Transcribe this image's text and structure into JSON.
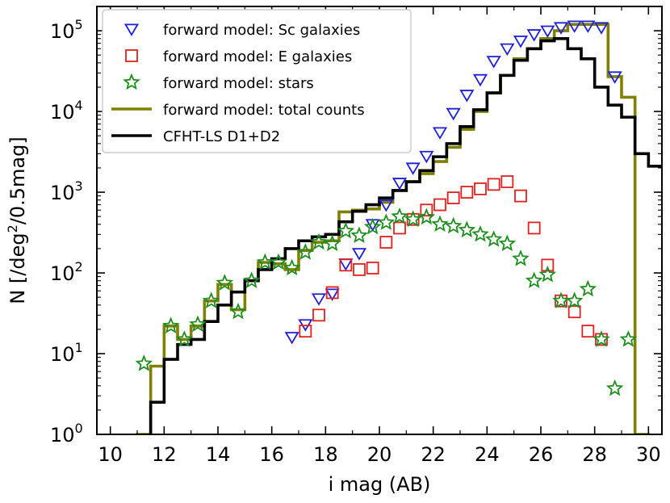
{
  "chart_data": {
    "type": "line",
    "xlabel": "i mag (AB)",
    "ylabel": "N [/deg^2/0.5mag]",
    "ylabel_parts": {
      "prefix": "N [/deg",
      "exp": "2",
      "suffix": "/0.5mag]"
    },
    "xlim": [
      9.5,
      30.5
    ],
    "ylim": [
      1,
      200000
    ],
    "yscale": "log",
    "x_ticks": [
      10,
      12,
      14,
      16,
      18,
      20,
      22,
      24,
      26,
      28,
      30
    ],
    "x_tick_labels": [
      "10",
      "12",
      "14",
      "16",
      "18",
      "20",
      "22",
      "24",
      "26",
      "28",
      "30"
    ],
    "y_ticks": [
      1,
      10,
      100,
      1000,
      10000,
      100000
    ],
    "y_tick_labels": [
      {
        "base": "10",
        "exp": "0"
      },
      {
        "base": "10",
        "exp": "1"
      },
      {
        "base": "10",
        "exp": "2"
      },
      {
        "base": "10",
        "exp": "3"
      },
      {
        "base": "10",
        "exp": "4"
      },
      {
        "base": "10",
        "exp": "5"
      }
    ],
    "legend_position": "top-left",
    "legend": [
      {
        "label": "forward model: Sc galaxies",
        "kind": "triangle-down",
        "color": "#1f1fd6"
      },
      {
        "label": "forward model: E galaxies",
        "kind": "square",
        "color": "#e02020"
      },
      {
        "label": "forward model: stars",
        "kind": "star",
        "color": "#1e8c1e"
      },
      {
        "label": "forward model: total counts",
        "kind": "line",
        "color": "#808000"
      },
      {
        "label": "CFHT-LS D1+D2",
        "kind": "line",
        "color": "#000000"
      }
    ],
    "series": [
      {
        "name": "forward model: total counts",
        "kind": "step",
        "color": "#808000",
        "x": [
          11.0,
          11.5,
          12.0,
          12.5,
          13.0,
          13.5,
          14.0,
          14.5,
          15.0,
          15.5,
          16.0,
          16.5,
          17.0,
          17.5,
          18.0,
          18.5,
          19.0,
          19.5,
          20.0,
          20.5,
          21.0,
          21.5,
          22.0,
          22.5,
          23.0,
          23.5,
          24.0,
          24.5,
          25.0,
          25.5,
          26.0,
          26.5,
          27.0,
          27.5,
          28.0,
          28.5,
          29.0,
          29.5
        ],
        "values": [
          1,
          7,
          22,
          15,
          22,
          45,
          72,
          35,
          80,
          135,
          130,
          110,
          190,
          240,
          250,
          570,
          600,
          620,
          750,
          1050,
          1350,
          1700,
          2400,
          3600,
          6000,
          10000,
          17000,
          28000,
          45000,
          60000,
          80000,
          100000,
          120000,
          120000,
          120000,
          27000,
          15000,
          1
        ]
      },
      {
        "name": "CFHT-LS D1+D2",
        "kind": "step",
        "color": "#000000",
        "x": [
          11.5,
          12.0,
          12.5,
          13.0,
          13.5,
          14.0,
          14.5,
          15.0,
          15.5,
          16.0,
          16.5,
          17.0,
          17.5,
          18.0,
          18.5,
          19.0,
          19.5,
          20.0,
          20.5,
          21.0,
          21.5,
          22.0,
          22.5,
          23.0,
          23.5,
          24.0,
          24.5,
          25.0,
          25.5,
          26.0,
          26.5,
          27.0,
          27.5,
          28.0,
          28.5,
          29.0,
          29.5,
          30.0
        ],
        "values": [
          2.5,
          8.5,
          13,
          15,
          25,
          40,
          58,
          80,
          110,
          150,
          200,
          250,
          280,
          300,
          430,
          580,
          700,
          850,
          1050,
          1350,
          1850,
          2750,
          4000,
          6500,
          10500,
          17000,
          28000,
          43000,
          60000,
          75000,
          80000,
          60000,
          45000,
          20000,
          12000,
          8500,
          3000,
          2100
        ]
      },
      {
        "name": "forward model: Sc galaxies",
        "kind": "marker",
        "marker": "triangle-down",
        "color": "#1f1fd6",
        "x": [
          16.75,
          17.25,
          17.75,
          18.25,
          18.75,
          19.25,
          19.75,
          20.25,
          20.75,
          21.25,
          21.75,
          22.25,
          22.75,
          23.25,
          23.75,
          24.25,
          24.75,
          25.25,
          25.75,
          26.25,
          26.75,
          27.25,
          27.75,
          28.25,
          28.75
        ],
        "values": [
          16,
          23,
          48,
          55,
          130,
          175,
          400,
          700,
          1300,
          2000,
          2800,
          5500,
          9500,
          16000,
          25000,
          42000,
          60000,
          75000,
          90000,
          100000,
          110000,
          115000,
          115000,
          110000,
          27000
        ]
      },
      {
        "name": "forward model: E galaxies",
        "kind": "marker",
        "marker": "square",
        "color": "#e02020",
        "x": [
          17.25,
          17.75,
          18.25,
          18.75,
          19.25,
          19.75,
          20.25,
          20.75,
          21.25,
          21.75,
          22.25,
          22.75,
          23.25,
          23.75,
          24.25,
          24.75,
          25.25,
          25.75,
          26.25,
          26.75,
          27.25,
          27.75,
          28.25
        ],
        "values": [
          19,
          30,
          57,
          125,
          110,
          115,
          240,
          360,
          460,
          600,
          700,
          850,
          1000,
          1100,
          1250,
          1350,
          900,
          360,
          125,
          45,
          33,
          19,
          15
        ]
      },
      {
        "name": "forward model: stars",
        "kind": "marker",
        "marker": "star",
        "color": "#1e8c1e",
        "x": [
          11.25,
          12.25,
          12.75,
          13.25,
          13.75,
          14.25,
          14.75,
          15.25,
          15.75,
          16.25,
          16.75,
          17.25,
          17.75,
          18.25,
          18.75,
          19.25,
          19.75,
          20.25,
          20.75,
          21.25,
          21.75,
          22.25,
          22.75,
          23.25,
          23.75,
          24.25,
          24.75,
          25.25,
          25.75,
          26.25,
          26.75,
          27.25,
          27.75,
          28.25,
          28.75,
          29.25
        ],
        "values": [
          7.5,
          22,
          15,
          23,
          45,
          75,
          33,
          80,
          135,
          135,
          115,
          180,
          240,
          230,
          330,
          290,
          370,
          420,
          500,
          460,
          490,
          400,
          380,
          340,
          300,
          260,
          230,
          150,
          80,
          95,
          45,
          45,
          63,
          15,
          3.7,
          15
        ]
      }
    ]
  }
}
